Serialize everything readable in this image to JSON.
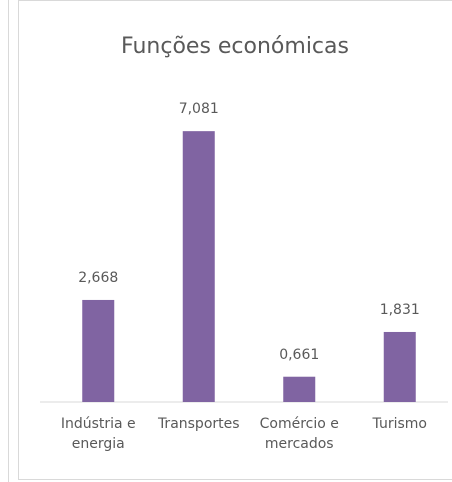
{
  "chart_data": {
    "type": "bar",
    "title": "Funções económicas",
    "categories": [
      "Indústria e energia",
      "Transportes",
      "Comércio e mercados",
      "Turismo"
    ],
    "values": [
      2.668,
      7.081,
      0.661,
      1.831
    ],
    "value_labels": [
      "2,668",
      "7,081",
      "0,661",
      "1,831"
    ],
    "color": "#8064a2",
    "ylim": [
      0,
      8
    ]
  }
}
